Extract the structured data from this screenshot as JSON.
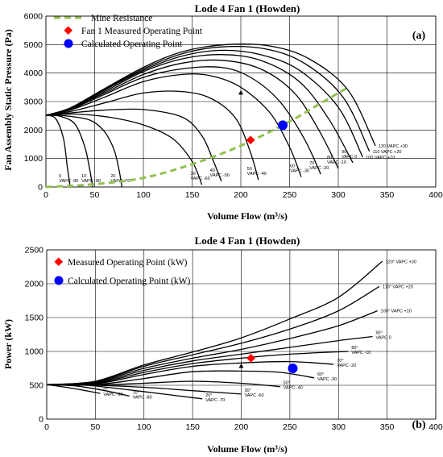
{
  "chart_data": [
    {
      "type": "line",
      "title": "Lode 4 Fan 1 (Howden)",
      "xlabel": "Volume Flow (m³/s)",
      "ylabel": "Fan Assembly Static Pressure (Pa)",
      "xlim": [
        0,
        400
      ],
      "ylim": [
        0,
        6000
      ],
      "xticks": [
        "0",
        "50",
        "100",
        "150",
        "200",
        "250",
        "300",
        "350",
        "400"
      ],
      "yticks": [
        "0",
        "1000",
        "2000",
        "3000",
        "4000",
        "5000",
        "6000"
      ],
      "panel_tag": "(a)",
      "legend": {
        "resistance": "Mine Resistance",
        "measured": "Fan 1 Measured Operating Point",
        "calculated": "Calculated Operating Point"
      },
      "colors": {
        "resistance": "#92c050",
        "measured": "#ff0000",
        "calculated": "#0000ff",
        "curve": "#000000"
      },
      "series": [
        {
          "label": [
            "0",
            "VAPC -90"
          ],
          "x": [
            0,
            10,
            18,
            22,
            25
          ],
          "y": [
            2520,
            2400,
            1700,
            700,
            0
          ]
        },
        {
          "label": [
            "10",
            "VAPC -80"
          ],
          "x": [
            0,
            15,
            30,
            40,
            45,
            48
          ],
          "y": [
            2520,
            2480,
            2200,
            1400,
            600,
            0
          ]
        },
        {
          "label": [
            "20",
            "VAPC -70"
          ],
          "x": [
            0,
            20,
            45,
            60,
            70,
            75,
            78
          ],
          "y": [
            2520,
            2500,
            2350,
            1950,
            1300,
            600,
            0
          ]
        },
        {
          "label": [
            "30",
            "VAPC -60"
          ],
          "x": [
            0,
            30,
            65,
            100,
            130,
            150,
            160
          ],
          "y": [
            2520,
            2560,
            2450,
            2180,
            1700,
            900,
            80
          ]
        },
        {
          "label": [
            "40",
            "VAPC -50"
          ],
          "x": [
            0,
            25,
            60,
            100,
            140,
            160,
            172,
            180
          ],
          "y": [
            2520,
            2600,
            2700,
            2720,
            2450,
            1800,
            900,
            200
          ]
        },
        {
          "label": [
            "50",
            "VAPC -40"
          ],
          "x": [
            0,
            25,
            60,
            100,
            140,
            170,
            195,
            210,
            218
          ],
          "y": [
            2520,
            2650,
            2950,
            3300,
            3350,
            3100,
            2400,
            1200,
            250
          ]
        },
        {
          "label": [
            "60",
            "VAPC -30"
          ],
          "x": [
            0,
            25,
            60,
            100,
            140,
            170,
            200,
            230,
            250,
            262
          ],
          "y": [
            2520,
            2700,
            3150,
            3700,
            3950,
            3900,
            3500,
            2600,
            1400,
            350
          ]
        },
        {
          "label": [
            "70",
            "VAPC -20"
          ],
          "x": [
            0,
            25,
            60,
            100,
            140,
            180,
            210,
            240,
            265,
            282
          ],
          "y": [
            2520,
            2720,
            3250,
            3850,
            4150,
            4200,
            3850,
            3000,
            1700,
            450
          ]
        },
        {
          "label": [
            "80",
            "VAPC -10"
          ],
          "x": [
            0,
            25,
            60,
            100,
            140,
            180,
            220,
            255,
            280,
            300
          ],
          "y": [
            2520,
            2740,
            3300,
            3950,
            4350,
            4450,
            4150,
            3300,
            2000,
            650
          ]
        },
        {
          "label": [
            "90",
            "VAPC 0"
          ],
          "x": [
            0,
            25,
            60,
            100,
            140,
            180,
            220,
            260,
            290,
            315
          ],
          "y": [
            2520,
            2750,
            3350,
            4050,
            4500,
            4650,
            4450,
            3700,
            2400,
            850
          ]
        },
        {
          "label": [
            "100 VAPC +10"
          ],
          "x": [
            0,
            25,
            60,
            100,
            140,
            180,
            220,
            260,
            300,
            325
          ],
          "y": [
            2520,
            2760,
            3400,
            4100,
            4600,
            4800,
            4650,
            4100,
            2800,
            1050
          ]
        },
        {
          "label": [
            "110 VAPC +20"
          ],
          "x": [
            0,
            25,
            60,
            100,
            140,
            180,
            225,
            265,
            305,
            332
          ],
          "y": [
            2520,
            2770,
            3420,
            4150,
            4680,
            4920,
            4850,
            4350,
            3150,
            1250
          ]
        },
        {
          "label": [
            "120 VAPC +30"
          ],
          "x": [
            0,
            25,
            60,
            100,
            140,
            185,
            230,
            270,
            310,
            338
          ],
          "y": [
            2520,
            2780,
            3450,
            4200,
            4750,
            5000,
            4950,
            4500,
            3400,
            1450
          ]
        }
      ],
      "resistance": {
        "x": [
          0,
          50,
          100,
          150,
          200,
          250,
          280,
          310
        ],
        "y": [
          0,
          100,
          320,
          800,
          1450,
          2300,
          2900,
          3500
        ]
      },
      "measured_point": {
        "x": 210,
        "y": 1650
      },
      "calculated_point": {
        "x": 243,
        "y": 2170
      },
      "marker": {
        "x": 200,
        "y": 3300
      }
    },
    {
      "type": "line",
      "title": "Lode 4 Fan 1 (Howden)",
      "xlabel": "Volume Flow (m³/s)",
      "ylabel": "Power (kW)",
      "xlim": [
        0,
        400
      ],
      "ylim": [
        0,
        2500
      ],
      "xticks": [
        "0",
        "50",
        "100",
        "150",
        "200",
        "250",
        "300",
        "350",
        "400"
      ],
      "yticks": [
        "0",
        "500",
        "1000",
        "1500",
        "2000",
        "2500"
      ],
      "panel_tag": "(b)",
      "legend": {
        "measured": "Measured Operating Point (kW)",
        "calculated": "Calculated Operating Point (kW)"
      },
      "colors": {
        "measured": "#ff0000",
        "calculated": "#0000ff",
        "curve": "#000000"
      },
      "series": [
        {
          "label": [
            "0°",
            "VAPC -90"
          ],
          "x": [
            0,
            20,
            40,
            55
          ],
          "y": [
            510,
            470,
            420,
            380
          ]
        },
        {
          "label": [
            "10°",
            "VAPC -80"
          ],
          "x": [
            0,
            30,
            60,
            85
          ],
          "y": [
            510,
            490,
            420,
            340
          ]
        },
        {
          "label": [
            "20°",
            "VAPC -70"
          ],
          "x": [
            0,
            40,
            80,
            120,
            160
          ],
          "y": [
            510,
            500,
            440,
            370,
            300
          ]
        },
        {
          "label": [
            "30°",
            "VAPC -60"
          ],
          "x": [
            0,
            50,
            100,
            150,
            200
          ],
          "y": [
            510,
            500,
            470,
            420,
            370
          ]
        },
        {
          "label": [
            "50°",
            "VAPC -40"
          ],
          "x": [
            0,
            50,
            100,
            150,
            200,
            240
          ],
          "y": [
            510,
            505,
            530,
            560,
            530,
            480
          ]
        },
        {
          "label": [
            "60°",
            "VAPC -30"
          ],
          "x": [
            0,
            50,
            100,
            150,
            200,
            240,
            275
          ],
          "y": [
            510,
            510,
            600,
            700,
            710,
            690,
            610
          ]
        },
        {
          "label": [
            "70°",
            "VAPC -20"
          ],
          "x": [
            0,
            50,
            100,
            150,
            200,
            250,
            295
          ],
          "y": [
            510,
            520,
            660,
            780,
            830,
            850,
            810
          ]
        },
        {
          "label": [
            "80°",
            "VAPC -10"
          ],
          "x": [
            0,
            50,
            100,
            150,
            200,
            250,
            310
          ],
          "y": [
            510,
            530,
            690,
            820,
            900,
            960,
            1000
          ]
        },
        {
          "label": [
            "90°",
            "VAPC 0"
          ],
          "x": [
            0,
            50,
            100,
            150,
            200,
            250,
            300,
            335
          ],
          "y": [
            510,
            540,
            720,
            860,
            960,
            1060,
            1160,
            1220
          ]
        },
        {
          "label": [
            "100° VAPC +10"
          ],
          "x": [
            0,
            50,
            100,
            150,
            200,
            250,
            300,
            340
          ],
          "y": [
            510,
            550,
            750,
            900,
            1030,
            1190,
            1380,
            1600
          ]
        },
        {
          "label": [
            "110° VAPC +20"
          ],
          "x": [
            0,
            50,
            100,
            150,
            200,
            250,
            300,
            342
          ],
          "y": [
            510,
            555,
            780,
            950,
            1120,
            1330,
            1600,
            1960
          ]
        },
        {
          "label": [
            "120° VAPC +30"
          ],
          "x": [
            0,
            50,
            100,
            150,
            200,
            250,
            300,
            345
          ],
          "y": [
            510,
            560,
            800,
            990,
            1200,
            1480,
            1800,
            2330
          ]
        }
      ],
      "measured_point": {
        "x": 210,
        "y": 900
      },
      "calculated_point": {
        "x": 253,
        "y": 750
      },
      "marker": {
        "x": 200,
        "y": 780
      }
    }
  ]
}
